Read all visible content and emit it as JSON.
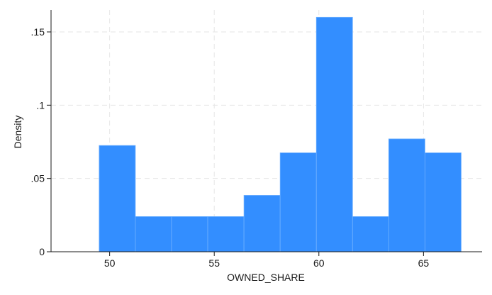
{
  "chart_data": {
    "type": "histogram",
    "xlabel": "OWNED_SHARE",
    "ylabel": "Density",
    "xlim": [
      47.2,
      67.8
    ],
    "ylim": [
      0,
      0.165
    ],
    "x_ticks": [
      {
        "value": 50,
        "label": "50"
      },
      {
        "value": 55,
        "label": "55"
      },
      {
        "value": 60,
        "label": "60"
      },
      {
        "value": 65,
        "label": "65"
      }
    ],
    "y_ticks": [
      {
        "value": 0,
        "label": "0"
      },
      {
        "value": 0.05,
        "label": ".05"
      },
      {
        "value": 0.1,
        "label": ".1"
      },
      {
        "value": 0.15,
        "label": ".15"
      }
    ],
    "bin_edges": [
      49.5,
      51.23,
      52.96,
      54.69,
      56.42,
      58.15,
      59.88,
      61.61,
      63.34,
      65.07,
      66.8
    ],
    "values": [
      0.0725,
      0.024,
      0.024,
      0.024,
      0.0385,
      0.0675,
      0.16,
      0.024,
      0.077,
      0.0675
    ],
    "bar_color": "#338EFF",
    "grid": true
  }
}
